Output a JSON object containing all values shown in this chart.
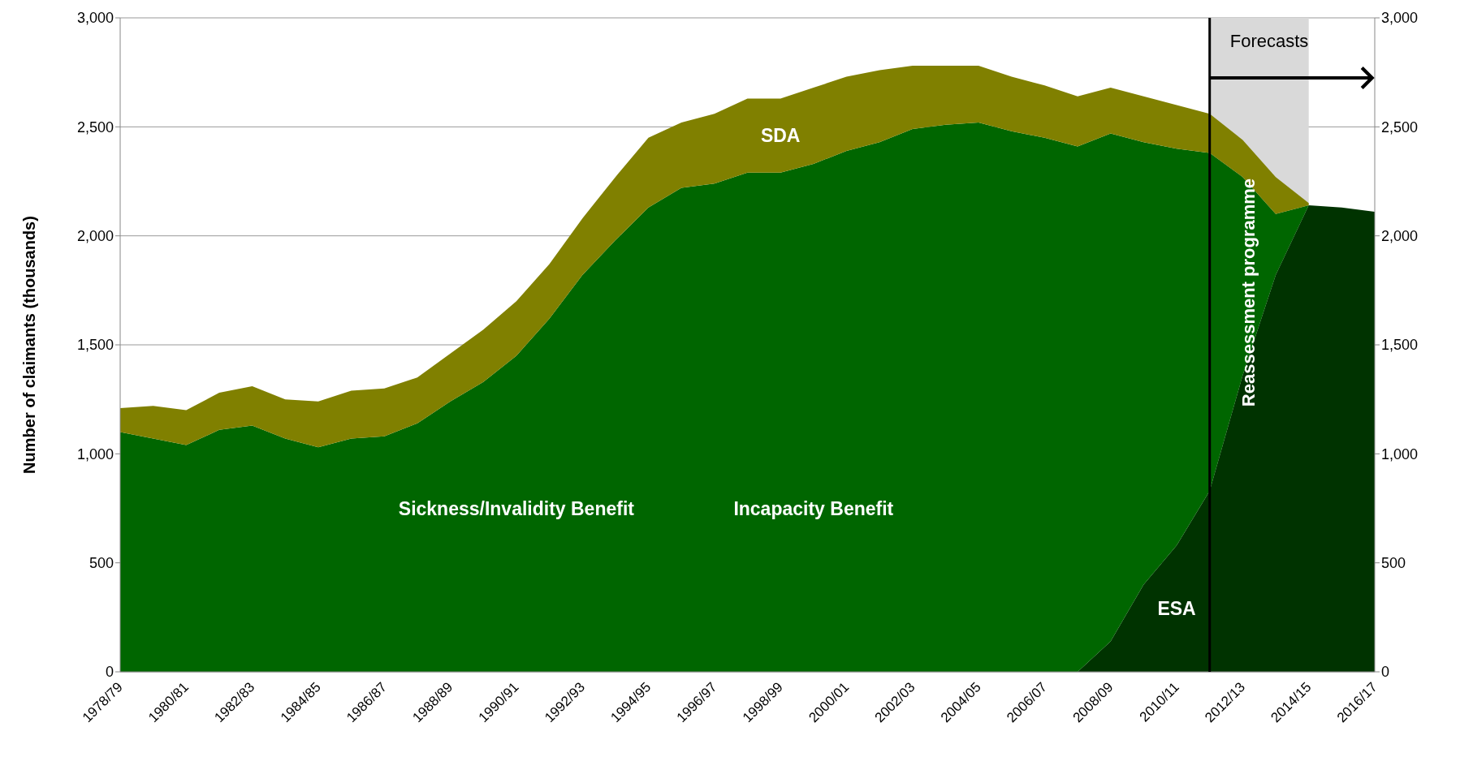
{
  "chart_data": {
    "type": "area",
    "stacked": true,
    "ylabel": "Number of claimants (thousands)",
    "categories": [
      "1978/79",
      null,
      "1980/81",
      null,
      "1982/83",
      null,
      "1984/85",
      null,
      "1986/87",
      null,
      "1988/89",
      null,
      "1990/91",
      null,
      "1992/93",
      null,
      "1994/95",
      null,
      "1996/97",
      null,
      "1998/99",
      null,
      "2000/01",
      null,
      "2002/03",
      null,
      "2004/05",
      null,
      "2006/07",
      null,
      "2008/09",
      null,
      "2010/11",
      null,
      "2012/13",
      null,
      "2014/15",
      null,
      "2016/17"
    ],
    "series": [
      {
        "name": "ESA",
        "color": "#003300",
        "values": [
          null,
          null,
          null,
          null,
          null,
          null,
          null,
          null,
          null,
          null,
          null,
          null,
          null,
          null,
          null,
          null,
          null,
          null,
          null,
          null,
          null,
          null,
          null,
          null,
          null,
          null,
          null,
          null,
          null,
          0,
          140,
          400,
          580,
          830,
          1360,
          1820,
          2140,
          2130,
          2110
        ]
      },
      {
        "color": "#006600",
        "values": [
          1100,
          1070,
          1040,
          1110,
          1130,
          1070,
          1030,
          1070,
          1080,
          1140,
          1240,
          1330,
          1450,
          1620,
          1820,
          1980,
          2130,
          2220,
          2240,
          2290,
          2290,
          2330,
          2390,
          2430,
          2490,
          2510,
          2520,
          2480,
          2450,
          2410,
          2330,
          2030,
          1820,
          1550,
          910,
          280,
          0,
          null,
          null
        ]
      },
      {
        "name": "SDA",
        "color": "#808000",
        "values": [
          110,
          150,
          160,
          170,
          180,
          180,
          210,
          220,
          220,
          210,
          220,
          240,
          250,
          250,
          260,
          290,
          320,
          300,
          320,
          340,
          340,
          350,
          340,
          330,
          290,
          270,
          260,
          250,
          240,
          230,
          210,
          210,
          200,
          180,
          170,
          170,
          10,
          null,
          null
        ]
      }
    ],
    "ylim": [
      0,
      3000
    ],
    "yticks": [
      0,
      500,
      {
        "value": 1000,
        "label": "1,000"
      },
      {
        "value": 1500,
        "label": "1,500"
      },
      {
        "value": 2000,
        "label": "2,000"
      },
      {
        "value": 2500,
        "label": "2,500"
      },
      {
        "value": 3000,
        "label": "3,000"
      }
    ],
    "y2lim": [
      0,
      3000
    ],
    "y2ticks": [
      0,
      500,
      {
        "value": 1000,
        "label": "1,000"
      },
      {
        "value": 1500,
        "label": "1,500"
      },
      {
        "value": 2000,
        "label": "2,000"
      },
      {
        "value": 2500,
        "label": "2,500"
      },
      {
        "value": 3000,
        "label": "3,000"
      }
    ],
    "grid": "y",
    "legend": false,
    "annotations": [
      "Sickness/Invalidity Benefit",
      "Incapacity Benefit",
      "Forecasts",
      "Reassessment programme"
    ]
  }
}
